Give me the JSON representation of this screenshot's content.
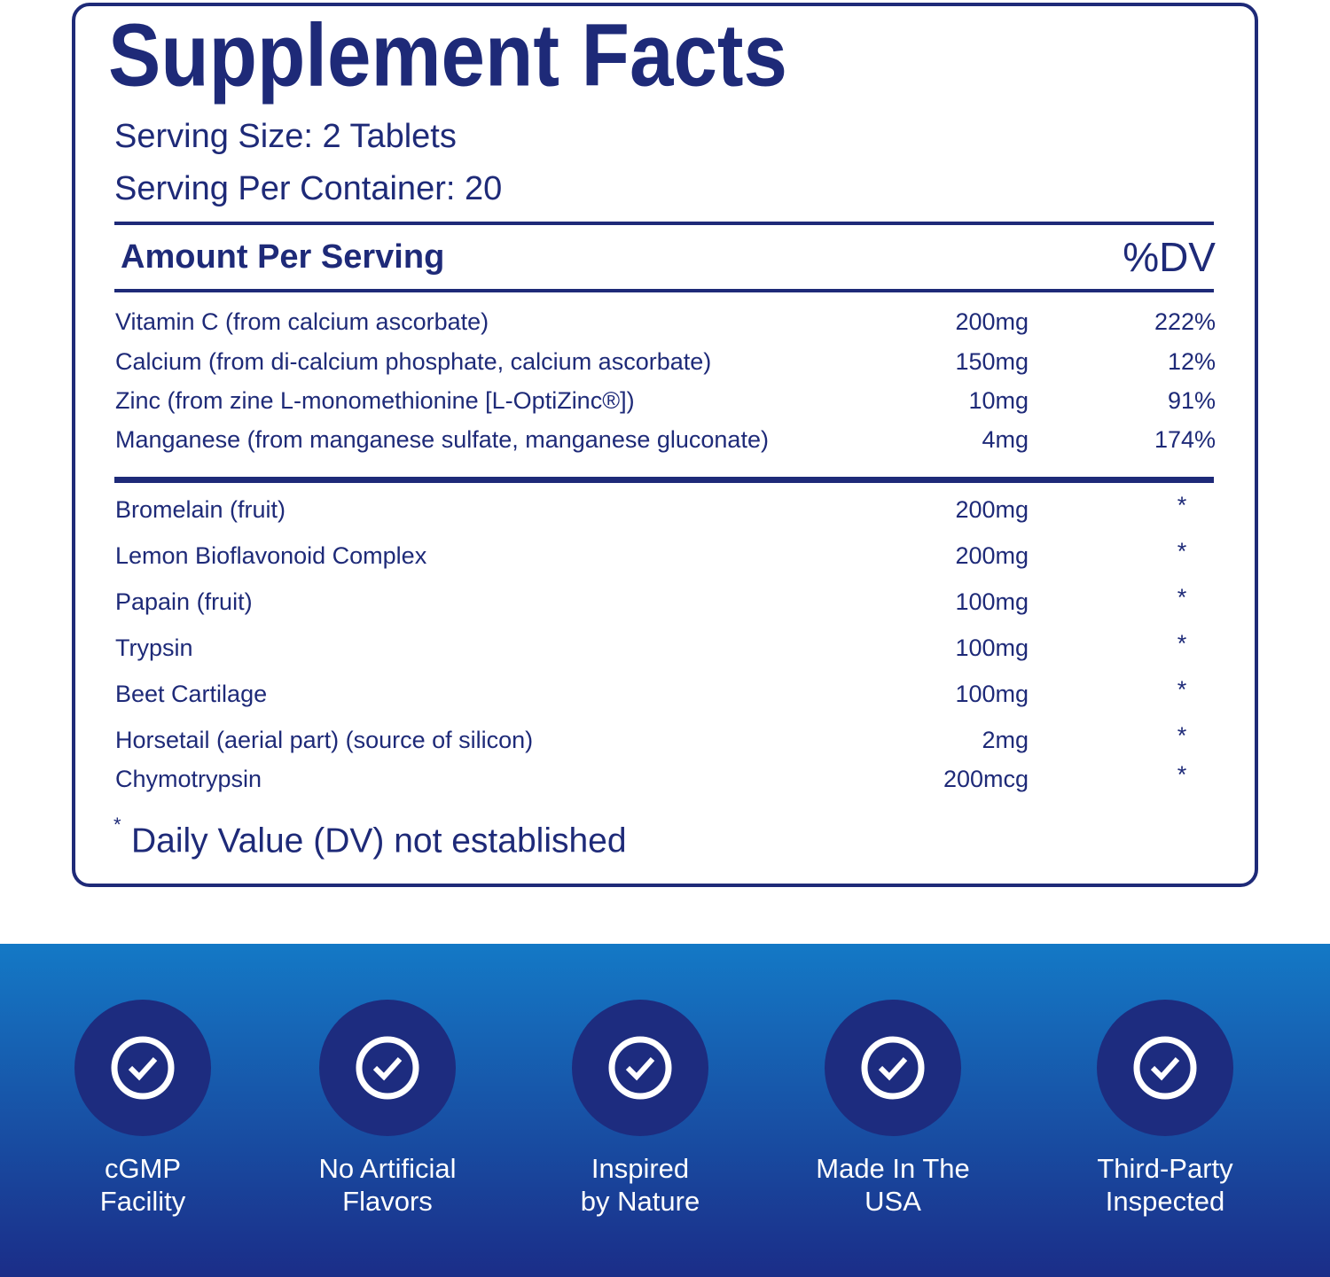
{
  "label": {
    "title": "Supplement Facts",
    "serving_size": "Serving Size: 2 Tablets",
    "servings_per_container": "Serving Per Container: 20",
    "header": {
      "amount": "Amount Per Serving",
      "dv": "%DV"
    },
    "vitamins": [
      [
        "Vitamin C (from calcium ascorbate)",
        "200mg",
        "222%"
      ],
      [
        "Calcium (from di-calcium phosphate, calcium ascorbate)",
        "150mg",
        "12%"
      ],
      [
        "Zinc (from zine L-monomethionine [L-OptiZinc®])",
        "10mg",
        "91%"
      ],
      [
        "Manganese (from manganese sulfate, manganese gluconate)",
        "4mg",
        "174%"
      ]
    ],
    "other": [
      [
        "Bromelain (fruit)",
        "200mg",
        "*"
      ],
      [
        "Lemon Bioflavonoid Complex",
        "200mg",
        "*"
      ],
      [
        "Papain (fruit)",
        "100mg",
        "*"
      ],
      [
        "Trypsin",
        "100mg",
        "*"
      ],
      [
        "Beet Cartilage",
        "100mg",
        "*"
      ],
      [
        "Horsetail (aerial part) (source of silicon)",
        "2mg",
        "*"
      ],
      [
        "Chymotrypsin",
        "200mcg",
        "*"
      ]
    ],
    "footnote": {
      "mark": "*",
      "text": "Daily Value (DV) not established"
    }
  },
  "badges": [
    [
      "cGMP",
      "Facility"
    ],
    [
      "No Artificial",
      "Flavors"
    ],
    [
      "Inspired",
      "by Nature"
    ],
    [
      "Made In The",
      "USA"
    ],
    [
      "Third-Party",
      "Inspected"
    ]
  ]
}
